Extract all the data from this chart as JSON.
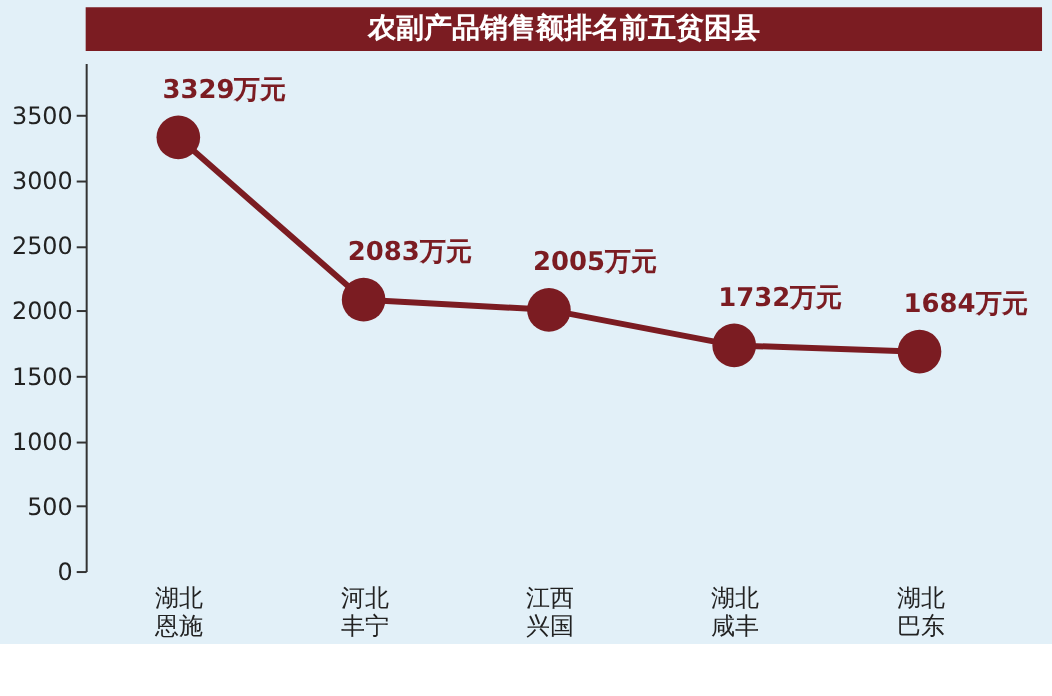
{
  "chart_data": {
    "type": "line",
    "title": "农副产品销售额排名前五贫困县",
    "categories": [
      "湖北恩施",
      "河北丰宁",
      "江西兴国",
      "湖北咸丰",
      "湖北巴东"
    ],
    "series": [
      {
        "color": "#7b1c22",
        "values": [
          3329,
          2083,
          2005,
          1732,
          1684
        ],
        "value_labels": [
          "3329万元",
          "2083万元",
          "2005万元",
          "1732万元",
          "1684万元"
        ]
      }
    ],
    "ylim": [
      0,
      3900
    ],
    "yticks": [
      0,
      500,
      1000,
      1500,
      2000,
      2500,
      3000,
      3500
    ],
    "grid": false,
    "marker": "circle",
    "line_style": "solid"
  }
}
